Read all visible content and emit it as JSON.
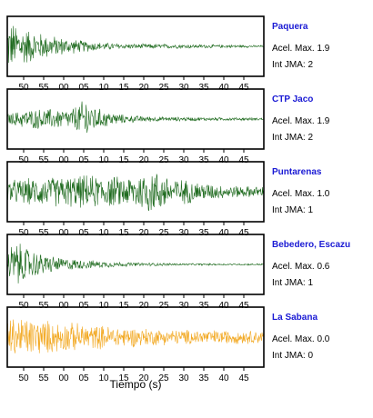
{
  "chart_data": {
    "type": "line",
    "xlabel": "Tiempo (s)",
    "x_tick_labels": [
      "50",
      "55",
      "00",
      "05",
      "10",
      "15",
      "20",
      "25",
      "30",
      "35",
      "40",
      "45"
    ],
    "accel_label": "Acel. Max.",
    "int_label": "Int JMA:",
    "series": [
      {
        "name": "Paquera",
        "accel_max": "1.9",
        "int_jma": "2",
        "color": "#1f6b1f",
        "envelope": [
          [
            0,
            0.95
          ],
          [
            2,
            0.9
          ],
          [
            4,
            0.75
          ],
          [
            8,
            0.55
          ],
          [
            12,
            0.4
          ],
          [
            18,
            0.25
          ],
          [
            24,
            0.15
          ],
          [
            30,
            0.1
          ],
          [
            45,
            0.08
          ],
          [
            65,
            0.04
          ]
        ]
      },
      {
        "name": "CTP Jaco",
        "accel_max": "1.9",
        "int_jma": "2",
        "color": "#1f6b1f",
        "envelope": [
          [
            0,
            0.2
          ],
          [
            4,
            0.35
          ],
          [
            8,
            0.4
          ],
          [
            12,
            0.4
          ],
          [
            16,
            0.38
          ],
          [
            19,
            0.7
          ],
          [
            20,
            0.95
          ],
          [
            21,
            0.6
          ],
          [
            24,
            0.35
          ],
          [
            30,
            0.15
          ],
          [
            40,
            0.08
          ],
          [
            65,
            0.05
          ]
        ]
      },
      {
        "name": "Puntarenas",
        "accel_max": "1.0",
        "int_jma": "1",
        "color": "#1f6b1f",
        "envelope": [
          [
            0,
            0.45
          ],
          [
            8,
            0.55
          ],
          [
            14,
            0.6
          ],
          [
            20,
            0.65
          ],
          [
            26,
            0.6
          ],
          [
            30,
            0.6
          ],
          [
            34,
            0.75
          ],
          [
            36,
            0.9
          ],
          [
            38,
            0.8
          ],
          [
            42,
            0.55
          ],
          [
            48,
            0.4
          ],
          [
            55,
            0.25
          ],
          [
            65,
            0.2
          ]
        ]
      },
      {
        "name": "Bebedero, Escazu",
        "accel_max": "0.6",
        "int_jma": "1",
        "color": "#1f6b1f",
        "envelope": [
          [
            0,
            0.7
          ],
          [
            2,
            0.9
          ],
          [
            4,
            0.75
          ],
          [
            8,
            0.45
          ],
          [
            14,
            0.25
          ],
          [
            22,
            0.15
          ],
          [
            30,
            0.08
          ],
          [
            45,
            0.04
          ],
          [
            65,
            0.03
          ]
        ]
      },
      {
        "name": "La Sabana",
        "accel_max": "0.0",
        "int_jma": "0",
        "color": "#f2a71e",
        "envelope": [
          [
            0,
            0.75
          ],
          [
            4,
            0.8
          ],
          [
            10,
            0.65
          ],
          [
            20,
            0.5
          ],
          [
            30,
            0.4
          ],
          [
            40,
            0.3
          ],
          [
            50,
            0.28
          ],
          [
            65,
            0.25
          ]
        ]
      }
    ]
  }
}
